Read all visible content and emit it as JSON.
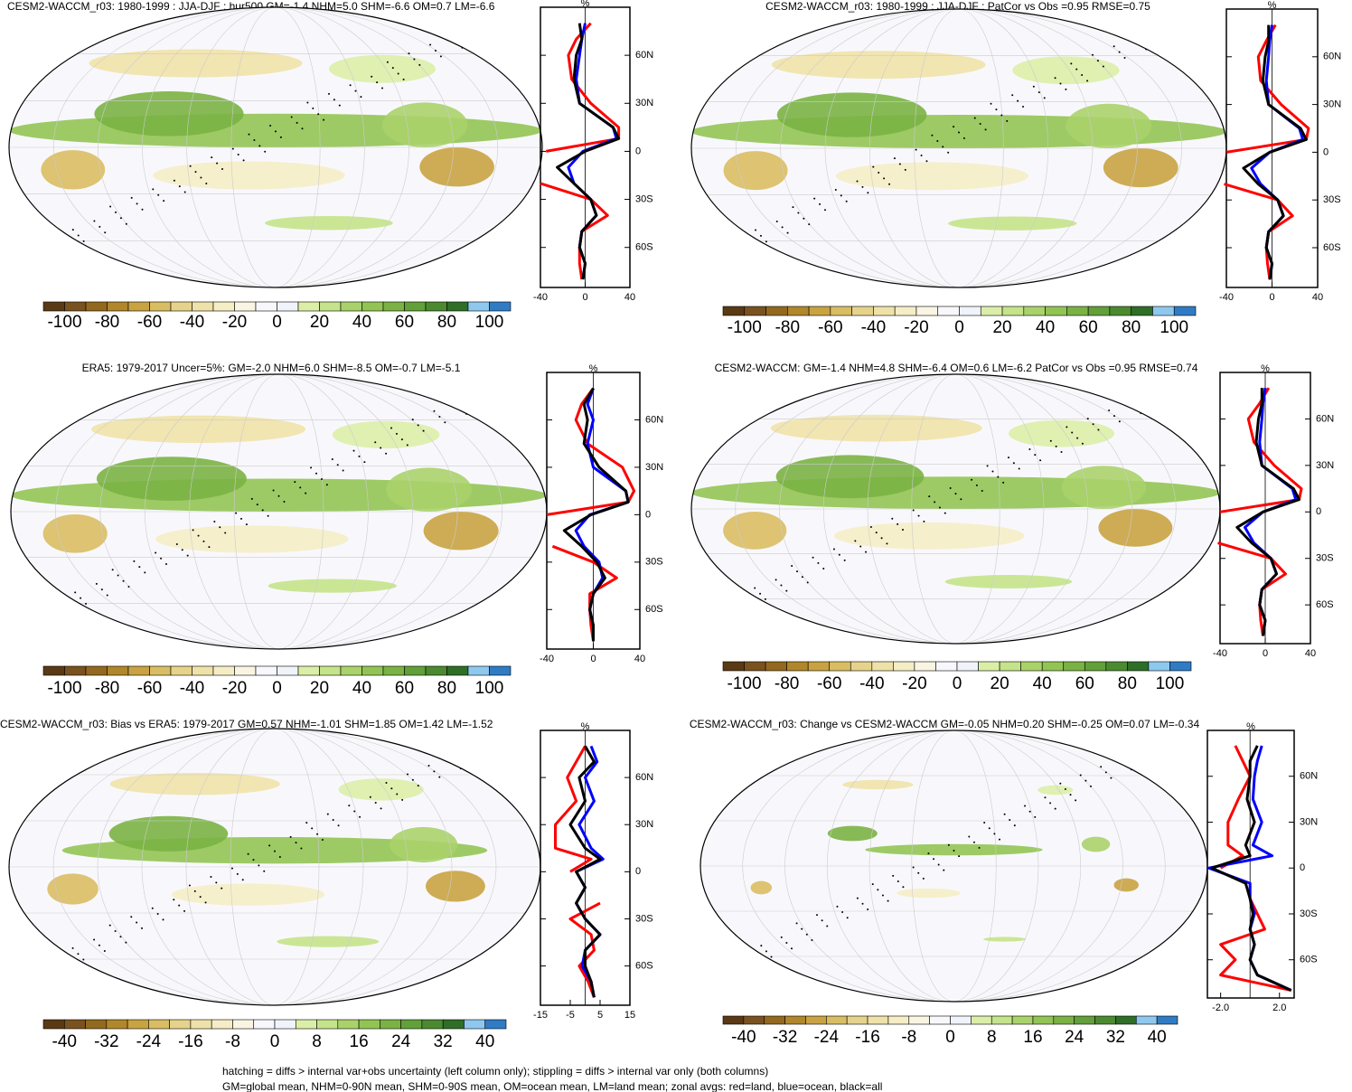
{
  "chart_data": [
    {
      "type": "map",
      "title": "CESM2-WACCM_r03: 1980-1999 : JJA-DJF : hur500 GM=-1.4 NHM=5.0 SHM=-6.6 OM=0.7 LM=-6.6",
      "colorbar": {
        "lim": [
          -110,
          110
        ],
        "ticks": [
          -100,
          -80,
          -60,
          -40,
          -20,
          0,
          20,
          40,
          60,
          80,
          100
        ],
        "colors": [
          "#5a3a14",
          "#7a5220",
          "#93691f",
          "#b0872a",
          "#c9a342",
          "#d9bd63",
          "#e6d38b",
          "#efe2a8",
          "#f5edc6",
          "#faf5e2",
          "#f8f8fc",
          "#f0f4fa",
          "#dbeea8",
          "#c4e38a",
          "#aad26a",
          "#92c454",
          "#7ab244",
          "#62a03a",
          "#4c8a30",
          "#2f6e27",
          "#8ec8ee",
          "#2f7cc4"
        ]
      },
      "profile": {
        "type": "line",
        "unit_label": "%",
        "y": [
          80,
          70,
          60,
          45,
          30,
          15,
          8,
          0,
          -10,
          -20,
          -30,
          -40,
          -50,
          -60,
          -70,
          -80
        ],
        "xlim": [
          -40,
          40
        ],
        "xticks": [
          -40,
          0,
          40
        ],
        "ylim": [
          -85,
          90
        ],
        "yticks": [
          {
            "value": 60,
            "label": "60N"
          },
          {
            "value": 30,
            "label": "30N"
          },
          0,
          {
            "value": -30,
            "label": "30S"
          },
          {
            "value": -60,
            "label": "60S"
          }
        ],
        "series": [
          {
            "name": "land",
            "color": "#ff0000",
            "values": [
              5,
              -8,
              -15,
              -12,
              5,
              30,
              30,
              -35,
              null,
              -40,
              5,
              20,
              -3,
              -5,
              -5,
              -3
            ]
          },
          {
            "name": "ocean",
            "color": "#0000ff",
            "values": [
              0,
              -3,
              -5,
              -8,
              -5,
              25,
              28,
              -2,
              -15,
              -10,
              5,
              10,
              -3,
              -5,
              0,
              -2
            ]
          },
          {
            "name": "all",
            "color": "#000000",
            "values": [
              -5,
              -3,
              -8,
              -10,
              -5,
              25,
              30,
              0,
              -25,
              -10,
              5,
              10,
              -3,
              -5,
              0,
              -2
            ]
          }
        ]
      }
    },
    {
      "type": "map",
      "title": "CESM2-WACCM_r03: 1980-1999 : JJA-DJF : PatCor vs Obs =0.95 RMSE=0.75",
      "colorbar": {
        "lim": [
          -110,
          110
        ],
        "ticks": [
          -100,
          -80,
          -60,
          -40,
          -20,
          0,
          20,
          40,
          60,
          80,
          100
        ],
        "colors": [
          "#5a3a14",
          "#7a5220",
          "#93691f",
          "#b0872a",
          "#c9a342",
          "#d9bd63",
          "#e6d38b",
          "#efe2a8",
          "#f5edc6",
          "#faf5e2",
          "#f8f8fc",
          "#f0f4fa",
          "#dbeea8",
          "#c4e38a",
          "#aad26a",
          "#92c454",
          "#7ab244",
          "#62a03a",
          "#4c8a30",
          "#2f6e27",
          "#8ec8ee",
          "#2f7cc4"
        ]
      },
      "profile": {
        "type": "line",
        "unit_label": "%",
        "y": [
          80,
          70,
          60,
          45,
          30,
          15,
          8,
          0,
          -10,
          -20,
          -30,
          -40,
          -50,
          -60,
          -70,
          -80
        ],
        "xlim": [
          -40,
          40
        ],
        "xticks": [
          -40,
          0,
          40
        ],
        "ylim": [
          -85,
          90
        ],
        "yticks": [
          {
            "value": 60,
            "label": "60N"
          },
          {
            "value": 30,
            "label": "30N"
          },
          0,
          {
            "value": -30,
            "label": "30S"
          },
          {
            "value": -60,
            "label": "60S"
          }
        ],
        "series": [
          {
            "name": "land",
            "color": "#ff0000",
            "values": [
              3,
              -5,
              -12,
              -10,
              8,
              32,
              30,
              -40,
              null,
              -42,
              5,
              18,
              -3,
              -5,
              -4,
              -2
            ]
          },
          {
            "name": "ocean",
            "color": "#0000ff",
            "values": [
              0,
              -2,
              -3,
              -5,
              -3,
              24,
              27,
              -2,
              -18,
              -10,
              5,
              10,
              -3,
              -5,
              0,
              -2
            ]
          },
          {
            "name": "all",
            "color": "#000000",
            "values": [
              -3,
              -3,
              -6,
              -8,
              -3,
              25,
              30,
              -2,
              -25,
              -12,
              5,
              10,
              -3,
              -5,
              0,
              -2
            ]
          }
        ]
      }
    },
    {
      "type": "map",
      "title": "ERA5: 1979-2017 Uncer=5%: GM=-2.0 NHM=6.0 SHM=-8.5 OM=-0.7 LM=-5.1",
      "colorbar": {
        "lim": [
          -110,
          110
        ],
        "ticks": [
          -100,
          -80,
          -60,
          -40,
          -20,
          0,
          20,
          40,
          60,
          80,
          100
        ],
        "colors": [
          "#5a3a14",
          "#7a5220",
          "#93691f",
          "#b0872a",
          "#c9a342",
          "#d9bd63",
          "#e6d38b",
          "#efe2a8",
          "#f5edc6",
          "#faf5e2",
          "#f8f8fc",
          "#f0f4fa",
          "#dbeea8",
          "#c4e38a",
          "#aad26a",
          "#92c454",
          "#7ab244",
          "#62a03a",
          "#4c8a30",
          "#2f6e27",
          "#8ec8ee",
          "#2f7cc4"
        ]
      },
      "profile": {
        "type": "line",
        "unit_label": "%",
        "y": [
          80,
          70,
          60,
          45,
          30,
          15,
          8,
          0,
          -10,
          -20,
          -30,
          -40,
          -50,
          -60,
          -70,
          -80
        ],
        "xlim": [
          -40,
          40
        ],
        "xticks": [
          -40,
          0,
          40
        ],
        "ylim": [
          -85,
          90
        ],
        "yticks": [
          {
            "value": 60,
            "label": "60N"
          },
          {
            "value": 30,
            "label": "30N"
          },
          0,
          {
            "value": -30,
            "label": "30S"
          },
          {
            "value": -60,
            "label": "60S"
          }
        ],
        "series": [
          {
            "name": "land",
            "color": "#ff0000",
            "values": [
              0,
              -10,
              -15,
              -5,
              25,
              35,
              30,
              -40,
              null,
              -35,
              0,
              20,
              -3,
              -3,
              -2,
              0
            ]
          },
          {
            "name": "ocean",
            "color": "#0000ff",
            "values": [
              0,
              -5,
              0,
              -5,
              0,
              28,
              30,
              -3,
              -15,
              -8,
              5,
              8,
              0,
              -3,
              0,
              0
            ]
          },
          {
            "name": "all",
            "color": "#000000",
            "values": [
              0,
              -8,
              -5,
              -8,
              5,
              28,
              30,
              -2,
              -25,
              -10,
              3,
              10,
              0,
              -3,
              0,
              0
            ]
          }
        ]
      }
    },
    {
      "type": "map",
      "title": "CESM2-WACCM: GM=-1.4 NHM=4.8 SHM=-6.4 OM=0.6 LM=-6.2 PatCor vs Obs =0.95 RMSE=0.74",
      "colorbar": {
        "lim": [
          -110,
          110
        ],
        "ticks": [
          -100,
          -80,
          -60,
          -40,
          -20,
          0,
          20,
          40,
          60,
          80,
          100
        ],
        "colors": [
          "#5a3a14",
          "#7a5220",
          "#93691f",
          "#b0872a",
          "#c9a342",
          "#d9bd63",
          "#e6d38b",
          "#efe2a8",
          "#f5edc6",
          "#faf5e2",
          "#f8f8fc",
          "#f0f4fa",
          "#dbeea8",
          "#c4e38a",
          "#aad26a",
          "#92c454",
          "#7ab244",
          "#62a03a",
          "#4c8a30",
          "#2f6e27",
          "#8ec8ee",
          "#2f7cc4"
        ]
      },
      "profile": {
        "type": "line",
        "unit_label": "%",
        "y": [
          80,
          70,
          60,
          45,
          30,
          15,
          8,
          0,
          -10,
          -20,
          -30,
          -40,
          -50,
          -60,
          -70,
          -80
        ],
        "xlim": [
          -40,
          40
        ],
        "xticks": [
          -40,
          0,
          40
        ],
        "ylim": [
          -85,
          90
        ],
        "yticks": [
          {
            "value": 60,
            "label": "60N"
          },
          {
            "value": 30,
            "label": "30N"
          },
          0,
          {
            "value": -30,
            "label": "30S"
          },
          {
            "value": -60,
            "label": "60S"
          }
        ],
        "series": [
          {
            "name": "land",
            "color": "#ff0000",
            "values": [
              3,
              -5,
              -15,
              -10,
              8,
              32,
              30,
              -40,
              null,
              -42,
              5,
              18,
              -3,
              -5,
              -4,
              -2
            ]
          },
          {
            "name": "ocean",
            "color": "#0000ff",
            "values": [
              0,
              -2,
              -3,
              -5,
              -3,
              24,
              27,
              -2,
              -18,
              -10,
              5,
              10,
              -3,
              -5,
              0,
              -2
            ]
          },
          {
            "name": "all",
            "color": "#000000",
            "values": [
              -3,
              -3,
              -6,
              -8,
              -3,
              25,
              30,
              -2,
              -25,
              -12,
              5,
              10,
              -3,
              -5,
              0,
              -2
            ]
          }
        ]
      }
    },
    {
      "type": "map",
      "title": "CESM2-WACCM_r03: Bias vs ERA5: 1979-2017 GM=0.57 NHM=-1.01 SHM=1.85 OM=1.42 LM=-1.52",
      "colorbar": {
        "lim": [
          -44,
          44
        ],
        "ticks": [
          -40,
          -32,
          -24,
          -16,
          -8,
          0,
          8,
          16,
          24,
          32,
          40
        ],
        "colors": [
          "#5a3a14",
          "#7a5220",
          "#93691f",
          "#b0872a",
          "#c9a342",
          "#d9bd63",
          "#e6d38b",
          "#efe2a8",
          "#f5edc6",
          "#faf5e2",
          "#f8f8fc",
          "#f0f4fa",
          "#dbeea8",
          "#c4e38a",
          "#aad26a",
          "#92c454",
          "#7ab244",
          "#62a03a",
          "#4c8a30",
          "#2f6e27",
          "#8ec8ee",
          "#2f7cc4"
        ]
      },
      "profile": {
        "type": "line",
        "unit_label": "%",
        "y": [
          80,
          70,
          60,
          45,
          30,
          15,
          8,
          0,
          -10,
          -20,
          -30,
          -40,
          -50,
          -60,
          -70,
          -80
        ],
        "xlim": [
          -15,
          15
        ],
        "xticks": [
          -15,
          -5,
          5,
          15
        ],
        "ylim": [
          -85,
          90
        ],
        "yticks": [
          {
            "value": 60,
            "label": "60N"
          },
          {
            "value": 30,
            "label": "30N"
          },
          0,
          {
            "value": -30,
            "label": "30S"
          },
          {
            "value": -60,
            "label": "60S"
          }
        ],
        "series": [
          {
            "name": "land",
            "color": "#ff0000",
            "values": [
              0,
              -3,
              -6,
              -3,
              -10,
              -10,
              2,
              -5,
              null,
              5,
              -5,
              2,
              3,
              -2,
              1,
              3
            ]
          },
          {
            "name": "ocean",
            "color": "#0000ff",
            "values": [
              2,
              4,
              0,
              3,
              -2,
              2,
              6,
              -3,
              0,
              -3,
              0,
              5,
              0,
              -1,
              2,
              3
            ]
          },
          {
            "name": "all",
            "color": "#000000",
            "values": [
              0,
              3,
              -2,
              0,
              -5,
              0,
              5,
              -3,
              0,
              -3,
              0,
              5,
              0,
              0,
              2,
              3
            ]
          }
        ]
      }
    },
    {
      "type": "map",
      "title": "CESM2-WACCM_r03: Change vs CESM2-WACCM GM=-0.05 NHM=0.20 SHM=-0.25 OM=0.07 LM=-0.34",
      "colorbar": {
        "lim": [
          -44,
          44
        ],
        "ticks": [
          -40,
          -32,
          -24,
          -16,
          -8,
          0,
          8,
          16,
          24,
          32,
          40
        ],
        "colors": [
          "#5a3a14",
          "#7a5220",
          "#93691f",
          "#b0872a",
          "#c9a342",
          "#d9bd63",
          "#e6d38b",
          "#efe2a8",
          "#f5edc6",
          "#faf5e2",
          "#f8f8fc",
          "#f0f4fa",
          "#dbeea8",
          "#c4e38a",
          "#aad26a",
          "#92c454",
          "#7ab244",
          "#62a03a",
          "#4c8a30",
          "#2f6e27",
          "#8ec8ee",
          "#2f7cc4"
        ]
      },
      "profile": {
        "type": "line",
        "unit_label": "%",
        "y": [
          80,
          70,
          60,
          45,
          30,
          15,
          8,
          0,
          -10,
          -20,
          -30,
          -40,
          -50,
          -60,
          -70,
          -80
        ],
        "xlim": [
          -2.9,
          3
        ],
        "xticks": [
          {
            "value": -2,
            "label": "-2.0"
          },
          {
            "value": 2,
            "label": "2.0"
          }
        ],
        "ylim": [
          -85,
          90
        ],
        "yticks": [
          {
            "value": 60,
            "label": "60N"
          },
          {
            "value": 30,
            "label": "30N"
          },
          0,
          {
            "value": -30,
            "label": "30S"
          },
          {
            "value": -60,
            "label": "60S"
          }
        ],
        "series": [
          {
            "name": "land",
            "color": "#ff0000",
            "values": [
              -1,
              -0.5,
              0,
              -0.8,
              -1.5,
              -1.5,
              -0.5,
              -2,
              null,
              0,
              0.5,
              1,
              -2,
              -1,
              -2,
              2.8
            ]
          },
          {
            "name": "ocean",
            "color": "#0000ff",
            "values": [
              0.8,
              0.5,
              0.3,
              0.2,
              0.8,
              0.2,
              1.5,
              -2.8,
              0,
              0,
              0.3,
              0,
              0.3,
              0,
              0.5,
              2.8
            ]
          },
          {
            "name": "all",
            "color": "#000000",
            "values": [
              0.5,
              0,
              0,
              -0.2,
              0.3,
              -0.3,
              0,
              -2.6,
              -0.3,
              0,
              0.2,
              0,
              0.3,
              0,
              0.5,
              2.8
            ]
          }
        ]
      }
    }
  ],
  "notes": [
    "hatching = diffs > internal var+obs uncertainty (left column only); stippling = diffs > internal var only (both columns)",
    "GM=global mean, NHM=0-90N mean, SHM=0-90S mean, OM=ocean mean, LM=land mean; zonal avgs: red=land, blue=ocean, black=all"
  ]
}
